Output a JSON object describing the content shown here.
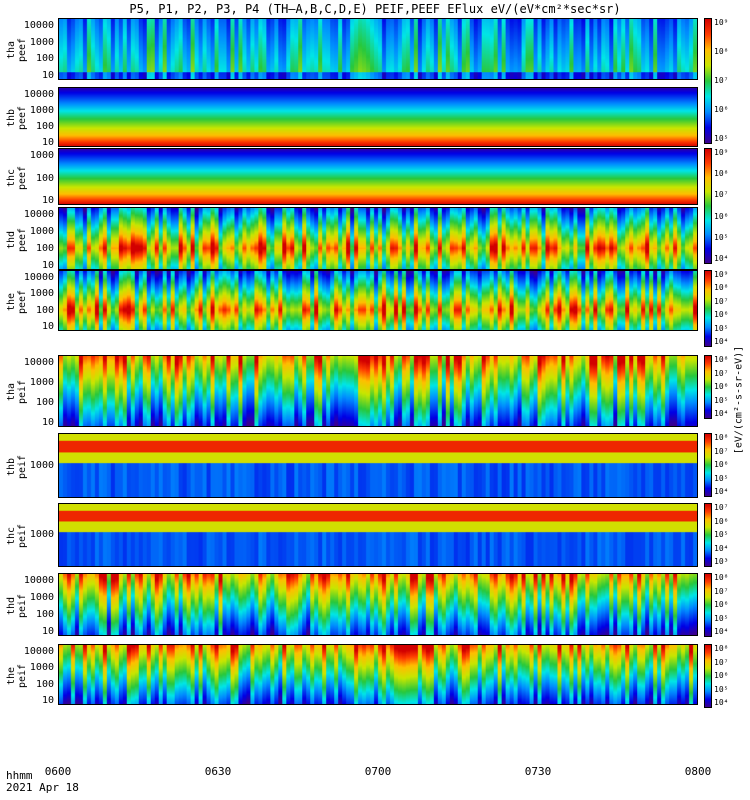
{
  "title": "P5, P1, P2, P3, P4 (TH—A,B,C,D,E) PEIF,PEEF EFlux eV/(eV*cm²*sec*sr)",
  "colorbar_unit": "[eV/(cm²-s-sr-eV)]",
  "x_tick_labels": [
    "0600",
    "0630",
    "0700",
    "0730",
    "0800"
  ],
  "footer_line1": "hhmm",
  "footer_line2": "2021 Apr 18",
  "colors": {
    "background": "#ffffff",
    "separator": "#ff0000"
  },
  "chart_data": {
    "type": "heatmap",
    "x_range": [
      "06:00",
      "08:00"
    ],
    "y_scale": "log",
    "colormap": "rainbow (purple-blue-cyan-green-yellow-red)",
    "panels": [
      {
        "id": "tha-peef",
        "label": [
          "tha",
          "peef"
        ],
        "yticks": [
          "10000",
          "1000",
          "100",
          "10"
        ],
        "cbar_ticks": [
          "10⁹",
          "10⁸",
          "10⁷",
          "10⁶",
          "10⁵"
        ],
        "max_exp": 9,
        "profile": "spiky-low",
        "energy_peak": "low"
      },
      {
        "id": "thb-peef",
        "label": [
          "thb",
          "peef"
        ],
        "yticks": [
          "10000",
          "1000",
          "100",
          "10"
        ],
        "cbar_ticks": [
          "10⁹",
          "10⁸",
          "10⁷",
          "10⁶",
          "10⁵",
          "10⁴"
        ],
        "max_exp": 9,
        "profile": "smooth-bands",
        "energy_peak": "low"
      },
      {
        "id": "thc-peef",
        "label": [
          "thc",
          "peef"
        ],
        "yticks": [
          "1000",
          "100",
          "10"
        ],
        "cbar_ticks": [
          "10⁹",
          "10⁸",
          "10⁷",
          "10⁶",
          "10⁵",
          "10⁴"
        ],
        "max_exp": 9,
        "profile": "smooth-bands",
        "energy_peak": "low"
      },
      {
        "id": "thd-peef",
        "label": [
          "thd",
          "peef"
        ],
        "yticks": [
          "10000",
          "1000",
          "100",
          "10"
        ],
        "cbar_ticks": [
          "10⁸",
          "10⁷",
          "10⁶",
          "10⁵",
          "10⁴"
        ],
        "max_exp": 8,
        "profile": "spiky-high",
        "energy_peak": "mid"
      },
      {
        "id": "the-peef",
        "label": [
          "the",
          "peef"
        ],
        "yticks": [
          "10000",
          "1000",
          "100",
          "10"
        ],
        "cbar_ticks": [
          "10⁸",
          "10⁷",
          "10⁶",
          "10⁵",
          "10⁴"
        ],
        "max_exp": 8,
        "profile": "spiky-high",
        "energy_peak": "mid"
      },
      {
        "id": "tha-peif",
        "label": [
          "tha",
          "peif"
        ],
        "yticks": [
          "10000",
          "1000",
          "100",
          "10"
        ],
        "cbar_ticks": [
          "10⁷",
          "10⁶",
          "10⁵",
          "10⁴",
          "10³"
        ],
        "max_exp": 7,
        "profile": "ion",
        "energy_peak": "high"
      },
      {
        "id": "thb-peif",
        "label": [
          "thb",
          "peif"
        ],
        "yticks": [
          "1000"
        ],
        "cbar_ticks": [
          "10⁸",
          "10⁷",
          "10⁶",
          "10⁵",
          "10⁴"
        ],
        "max_exp": 8,
        "profile": "ion-narrow",
        "energy_peak": "high"
      },
      {
        "id": "thc-peif",
        "label": [
          "thc",
          "peif"
        ],
        "yticks": [
          "1000"
        ],
        "cbar_ticks": [
          "10⁸",
          "10⁷",
          "10⁶",
          "10⁵",
          "10⁴"
        ],
        "max_exp": 8,
        "profile": "ion-narrow",
        "energy_peak": "high"
      },
      {
        "id": "thd-peif",
        "label": [
          "thd",
          "peif"
        ],
        "yticks": [
          "10000",
          "1000",
          "100",
          "10"
        ],
        "cbar_ticks": [
          "10⁷",
          "10⁶",
          "10⁵",
          "10⁴",
          "10³"
        ],
        "max_exp": 7,
        "profile": "ion",
        "energy_peak": "high"
      },
      {
        "id": "the-peif",
        "label": [
          "the",
          "peif"
        ],
        "yticks": [
          "10000",
          "1000",
          "100",
          "10"
        ],
        "cbar_ticks": [
          "10⁷",
          "10⁶",
          "10⁵",
          "10⁴",
          "10³"
        ],
        "max_exp": 7,
        "profile": "ion",
        "energy_peak": "high"
      }
    ]
  }
}
